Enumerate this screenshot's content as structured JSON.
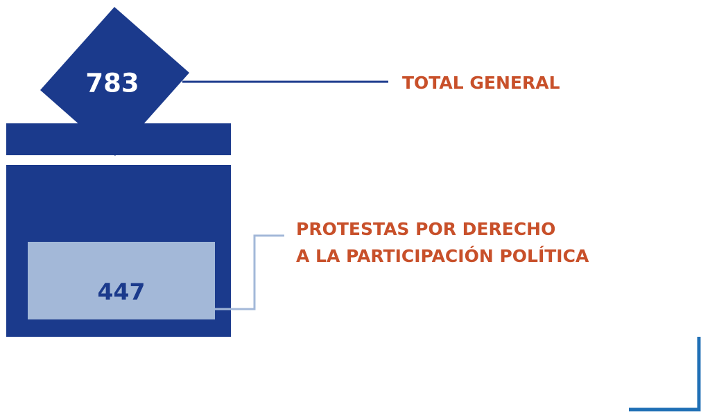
{
  "total": {
    "value": 783,
    "label": "TOTAL GENERAL"
  },
  "subset": {
    "value": 447,
    "label_lines": [
      "PROTESTAS POR DERECHO",
      "A LA PARTICIPACIÓN POLÍTICA"
    ]
  }
}
